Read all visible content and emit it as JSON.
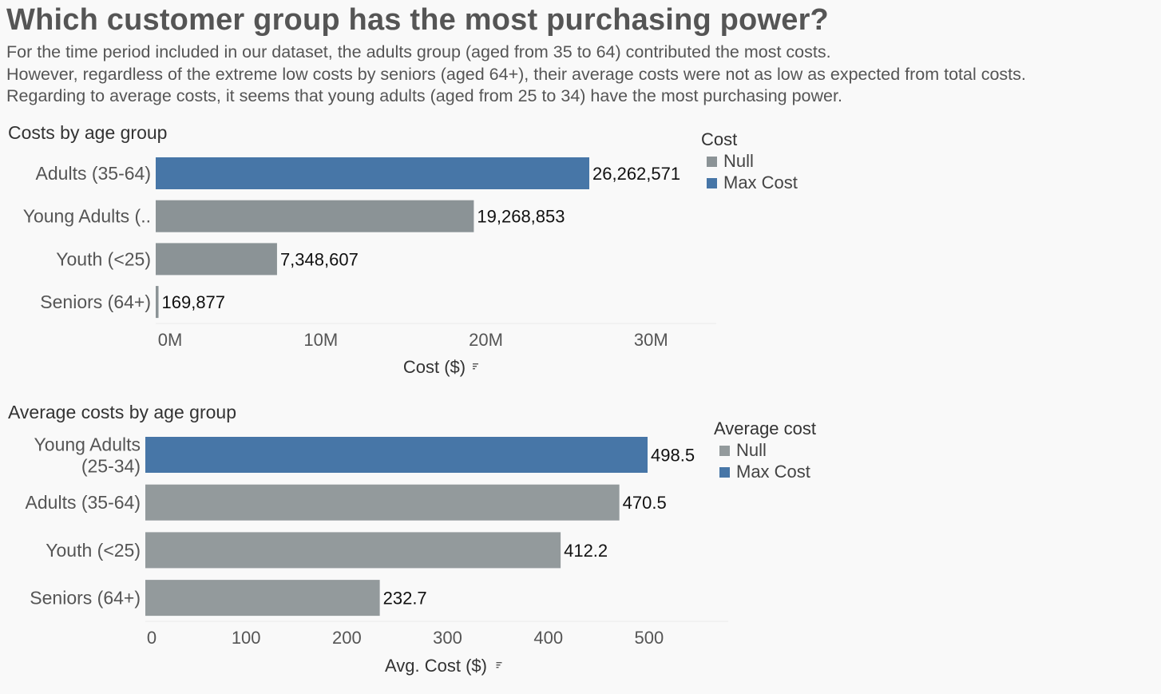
{
  "title": "Which customer group has the most purchasing power?",
  "subtitle_lines": [
    "For the time period included in our dataset, the adults group (aged from 35 to 64) contributed the most costs.",
    "However, regardless of the extreme low costs by seniors (aged 64+), their average costs were not as low as expected from total costs.",
    "Regarding to average costs, it seems that young adults (aged from 25 to 34) have the most purchasing power."
  ],
  "colors": {
    "max": "#4776a7",
    "null": "#8b9396",
    "null_avg": "#939a9c"
  },
  "chart_data": [
    {
      "type": "bar",
      "orientation": "horizontal",
      "title": "Costs by age group",
      "categories": [
        "Adults (35-64)",
        "Young Adults (..",
        "Youth (<25)",
        "Seniors (64+)"
      ],
      "values": [
        26262571,
        19268853,
        7348607,
        169877
      ],
      "value_labels": [
        "26,262,571",
        "19,268,853",
        "7,348,607",
        "169,877"
      ],
      "highlight": [
        "Max Cost",
        "Null",
        "Null",
        "Null"
      ],
      "xlabel": "Cost ($)",
      "xlim": [
        0,
        33500000
      ],
      "ticks": [
        0,
        10000000,
        20000000,
        30000000
      ],
      "tick_labels": [
        "0M",
        "10M",
        "20M",
        "30M"
      ],
      "legend": {
        "title": "Cost",
        "items": [
          "Null",
          "Max Cost"
        ],
        "placement": "right"
      }
    },
    {
      "type": "bar",
      "orientation": "horizontal",
      "title": "Average costs by age group",
      "categories": [
        [
          "Young Adults",
          "(25-34)"
        ],
        [
          "Adults (35-64)"
        ],
        [
          "Youth (<25)"
        ],
        [
          "Seniors (64+)"
        ]
      ],
      "values": [
        498.5,
        470.5,
        412.2,
        232.7
      ],
      "value_labels": [
        "498.5",
        "470.5",
        "412.2",
        "232.7"
      ],
      "highlight": [
        "Max Cost",
        "Null",
        "Null",
        "Null"
      ],
      "xlabel": "Avg. Cost ($)",
      "xlim": [
        0,
        575
      ],
      "ticks": [
        0,
        100,
        200,
        300,
        400,
        500
      ],
      "tick_labels": [
        "0",
        "100",
        "200",
        "300",
        "400",
        "500"
      ],
      "legend": {
        "title": "Average cost",
        "items": [
          "Null",
          "Max Cost"
        ],
        "placement": "right"
      }
    }
  ]
}
